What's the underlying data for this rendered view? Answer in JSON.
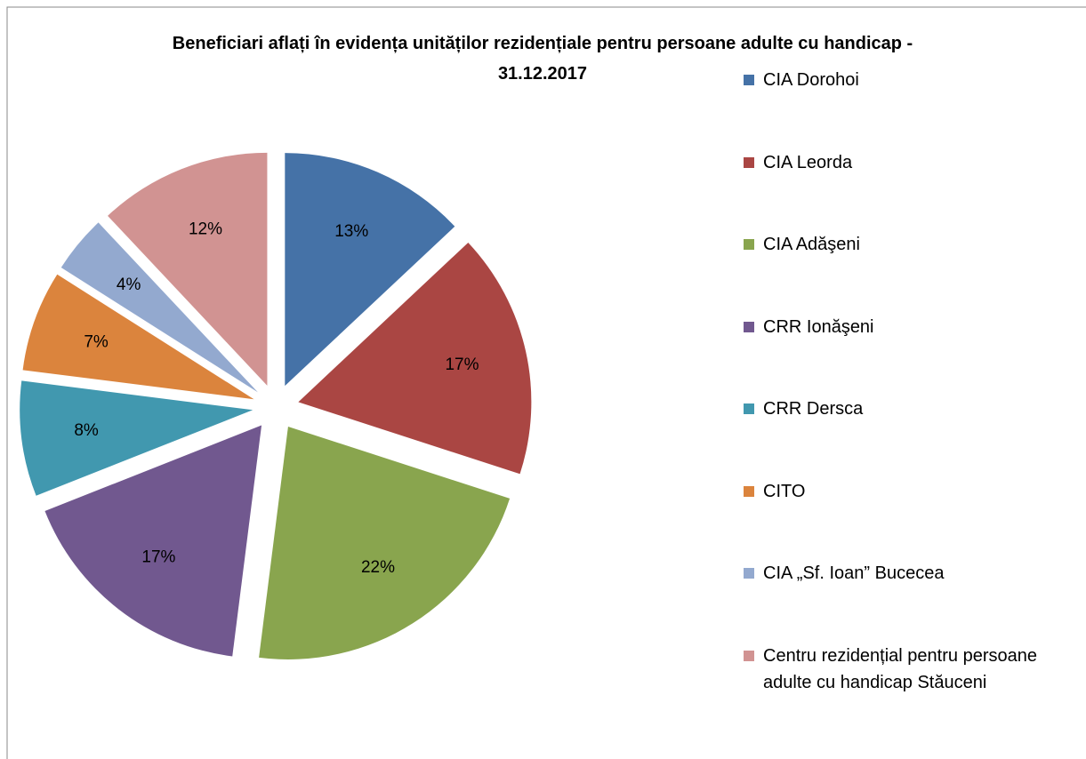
{
  "chart_data": {
    "type": "pie",
    "title": "Beneficiari aflați în evidența unităților rezidențiale pentru persoane adulte cu handicap - 31.12.2017",
    "categories": [
      "CIA Dorohoi",
      "CIA Leorda",
      "CIA Adăşeni",
      "CRR Ionăşeni",
      "CRR Dersca",
      "CITO",
      "CIA „Sf. Ioan” Bucecea",
      "Centru rezidențial pentru persoane adulte cu handicap Stăuceni"
    ],
    "values": [
      13,
      17,
      22,
      17,
      8,
      7,
      4,
      12
    ],
    "value_labels": [
      "13%",
      "17%",
      "22%",
      "17%",
      "8%",
      "7%",
      "4%",
      "12%"
    ],
    "colors": [
      "#4572a7",
      "#aa4643",
      "#89a54e",
      "#71588f",
      "#4198af",
      "#db843d",
      "#93a9cf",
      "#d19392"
    ],
    "legend": "right"
  }
}
